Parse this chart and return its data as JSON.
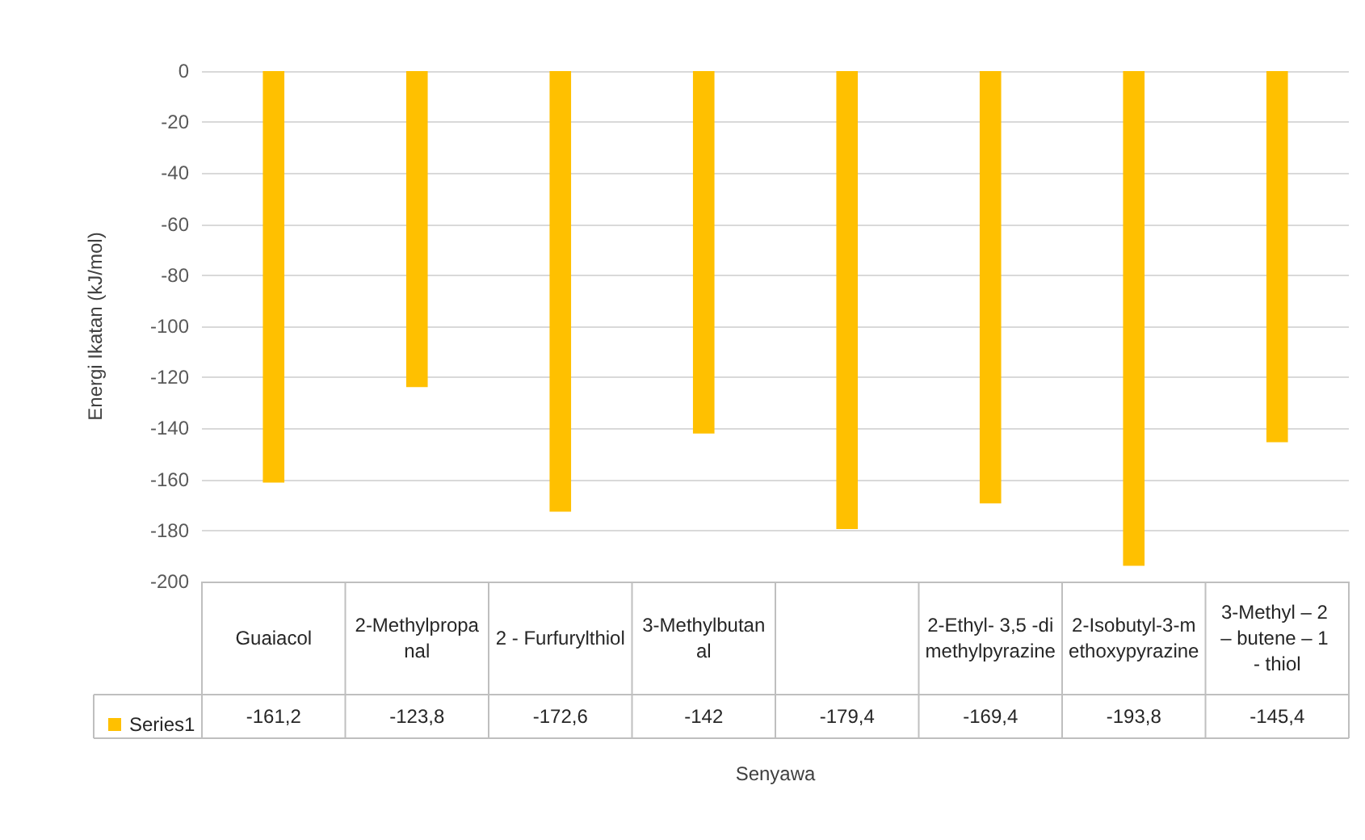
{
  "chart_data": {
    "type": "bar",
    "xlabel": "Senyawa",
    "ylabel": "Energi Ikatan (kJ/mol)",
    "categories": [
      "Guaiacol",
      "2-Methylpropanal",
      "2 - Furfurylthiol",
      "3-Methylbutanal",
      null,
      "2-Ethyl- 3,5 -dimethylpyrazine",
      "2-Isobutyl-3-methoxypyrazine",
      "3-Methyl – 2 – butene – 1 - thiol"
    ],
    "series": [
      {
        "name": "Series1",
        "color": "#ffc000",
        "values": [
          -161.2,
          -123.8,
          -172.6,
          -142,
          -179.4,
          -169.4,
          -193.8,
          -145.4
        ],
        "value_labels": [
          "-161,2",
          "-123,8",
          "-172,6",
          "-142",
          "-179,4",
          "-169,4",
          "-193,8",
          "-145,4"
        ]
      }
    ],
    "ylim": [
      -200,
      0
    ],
    "yticks": [
      0,
      -20,
      -40,
      -60,
      -80,
      -100,
      -120,
      -140,
      -160,
      -180,
      -200
    ],
    "grid": "y",
    "legend": "bottom left"
  }
}
